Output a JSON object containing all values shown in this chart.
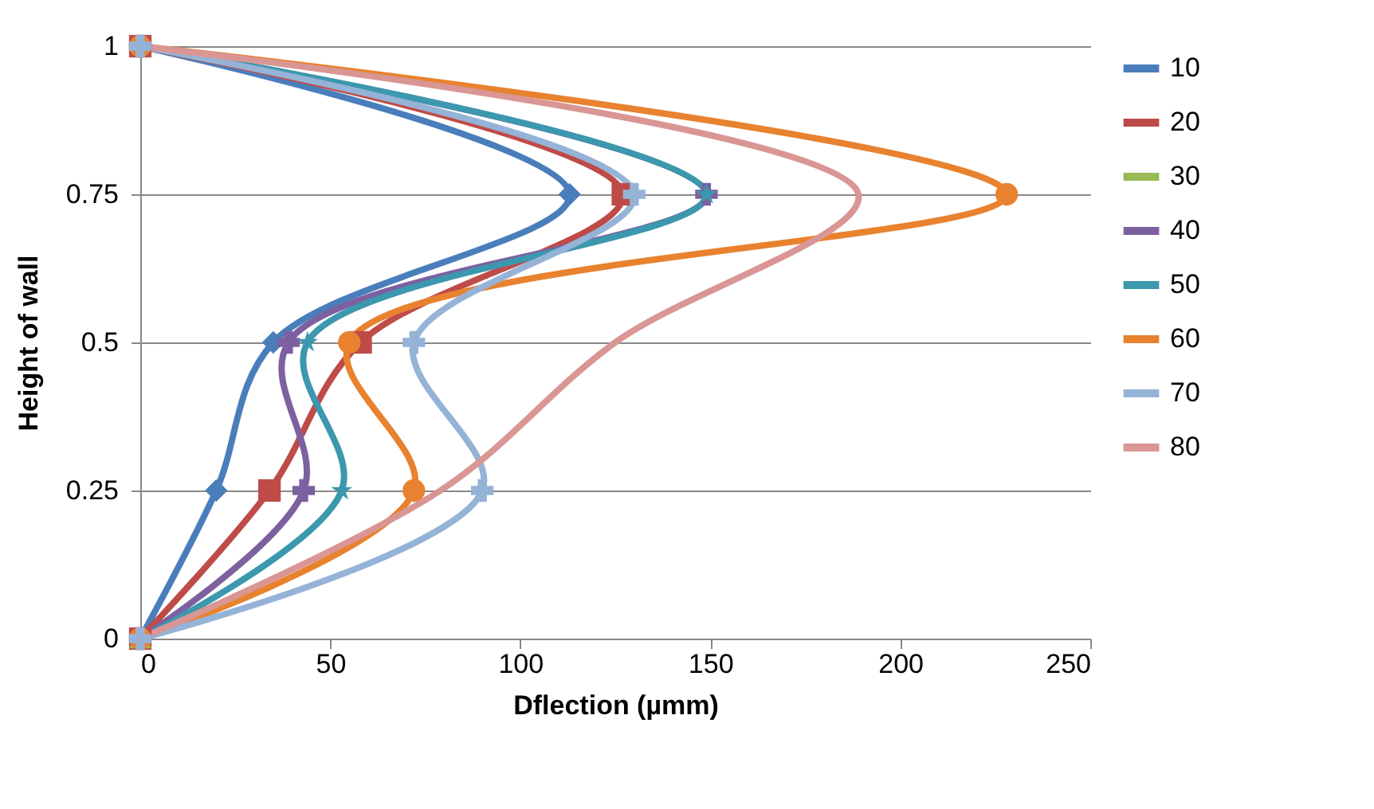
{
  "chart_data": {
    "type": "line",
    "xlabel": "Dflection (µmm)",
    "ylabel": "Height of wall",
    "xlim": [
      0,
      250
    ],
    "xticks": [
      0,
      50,
      100,
      150,
      200,
      250
    ],
    "ylim": [
      0,
      1
    ],
    "yticks": [
      0,
      0.25,
      0.5,
      0.75,
      1
    ],
    "grid": "y",
    "legend": "right",
    "series": [
      {
        "name": "10",
        "color": "#4a7ebb",
        "marker": "diamond",
        "x": [
          0,
          20,
          35,
          113,
          0
        ],
        "values": [
          0,
          0.25,
          0.5,
          0.75,
          1
        ]
      },
      {
        "name": "20",
        "color": "#be4b48",
        "marker": "square",
        "x": [
          0,
          34,
          58,
          127,
          0
        ],
        "values": [
          0,
          0.25,
          0.5,
          0.75,
          1
        ]
      },
      {
        "name": "30",
        "color": "#98b954",
        "marker": "triangle",
        "x": [
          0
        ],
        "values": [
          0
        ]
      },
      {
        "name": "40",
        "color": "#7d60a0",
        "marker": "cross",
        "x": [
          0,
          43,
          39,
          149,
          0
        ],
        "values": [
          0,
          0.25,
          0.5,
          0.75,
          1
        ]
      },
      {
        "name": "50",
        "color": "#3c98ae",
        "marker": "star",
        "x": [
          0,
          53,
          44,
          149,
          0
        ],
        "values": [
          0,
          0.25,
          0.5,
          0.75,
          1
        ]
      },
      {
        "name": "60",
        "color": "#e8822f",
        "marker": "circle",
        "x": [
          0,
          72,
          55,
          228,
          0
        ],
        "values": [
          0,
          0.25,
          0.5,
          0.75,
          1
        ]
      },
      {
        "name": "70",
        "color": "#95b3d7",
        "marker": "cross",
        "x": [
          0,
          90,
          72,
          130,
          0
        ],
        "values": [
          0,
          0.25,
          0.5,
          0.75,
          1
        ]
      },
      {
        "name": "80",
        "color": "#d99694",
        "marker": "none",
        "x": [
          0,
          79,
          125,
          189,
          0
        ],
        "values": [
          0,
          0.25,
          0.5,
          0.75,
          1
        ]
      }
    ]
  }
}
